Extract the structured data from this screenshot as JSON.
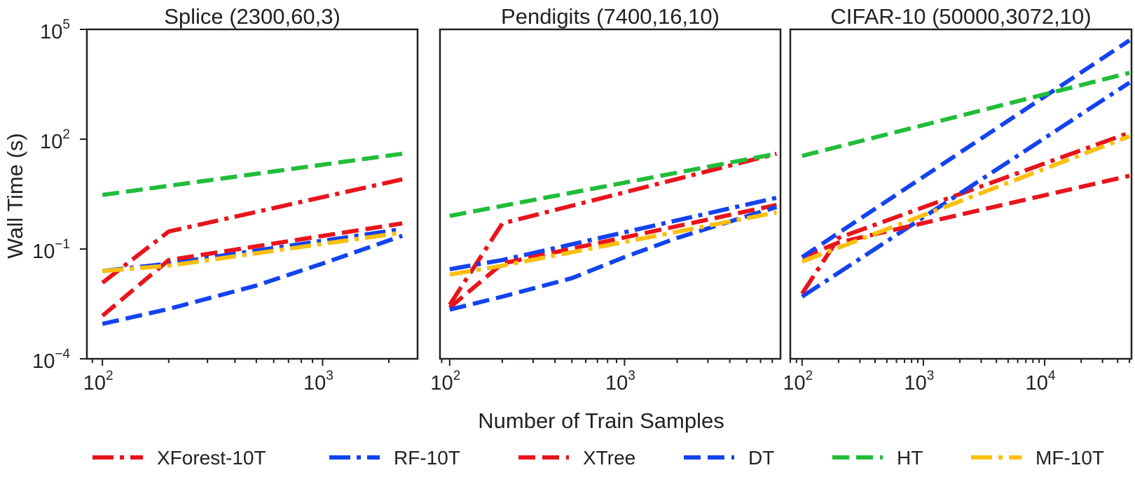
{
  "figure": {
    "ylabel": "Wall Time (s)",
    "xlabel": "Number of Train Samples"
  },
  "legend": [
    {
      "name": "XForest-10T",
      "color": "#e8141c",
      "dash": "dashdot"
    },
    {
      "name": "RF-10T",
      "color": "#1343ee",
      "dash": "dashdot"
    },
    {
      "name": "XTree",
      "color": "#e8141c",
      "dash": "dashed"
    },
    {
      "name": "DT",
      "color": "#1343ee",
      "dash": "dashed"
    },
    {
      "name": "HT",
      "color": "#21bd3a",
      "dash": "dashed"
    },
    {
      "name": "MF-10T",
      "color": "#fbbf0f",
      "dash": "dashdot"
    }
  ],
  "chart_data": [
    {
      "type": "line",
      "title": "Splice (2300,60,3)",
      "xscale": "log",
      "yscale": "log",
      "xlim": [
        85,
        2700
      ],
      "ylim": [
        0.0001,
        100000
      ],
      "xticks": [
        {
          "base": "10",
          "exp": "2",
          "value": 100
        },
        {
          "base": "10",
          "exp": "3",
          "value": 1000
        }
      ],
      "yticks": [
        {
          "base": "10",
          "exp": "−4",
          "value": 0.0001
        },
        {
          "base": "10",
          "exp": "−1",
          "value": 0.1
        },
        {
          "base": "10",
          "exp": "2",
          "value": 100
        },
        {
          "base": "10",
          "exp": "5",
          "value": 100000
        }
      ],
      "series": [
        {
          "name": "XForest-10T",
          "x": [
            100,
            200,
            2300
          ],
          "y": [
            0.012,
            0.3,
            8
          ]
        },
        {
          "name": "RF-10T",
          "x": [
            100,
            200,
            2300
          ],
          "y": [
            0.025,
            0.04,
            0.35
          ]
        },
        {
          "name": "XTree",
          "x": [
            100,
            200,
            2300
          ],
          "y": [
            0.0015,
            0.05,
            0.5
          ]
        },
        {
          "name": "DT",
          "x": [
            100,
            200,
            500,
            1000,
            2300
          ],
          "y": [
            0.0009,
            0.0023,
            0.01,
            0.04,
            0.23
          ]
        },
        {
          "name": "HT",
          "x": [
            100,
            2300
          ],
          "y": [
            3,
            40
          ]
        },
        {
          "name": "MF-10T",
          "x": [
            100,
            200,
            2300
          ],
          "y": [
            0.025,
            0.035,
            0.28
          ]
        }
      ]
    },
    {
      "type": "line",
      "title": "Pendigits (7400,16,10)",
      "xscale": "log",
      "yscale": "log",
      "xlim": [
        88,
        7800
      ],
      "ylim": [
        0.0001,
        100000
      ],
      "xticks": [
        {
          "base": "10",
          "exp": "2",
          "value": 100
        },
        {
          "base": "10",
          "exp": "3",
          "value": 1000
        }
      ],
      "yticks": [],
      "series": [
        {
          "name": "XForest-10T",
          "x": [
            100,
            200,
            7400
          ],
          "y": [
            0.003,
            0.5,
            40
          ]
        },
        {
          "name": "RF-10T",
          "x": [
            100,
            200,
            7400
          ],
          "y": [
            0.028,
            0.05,
            2.5
          ]
        },
        {
          "name": "XTree",
          "x": [
            100,
            200,
            7400
          ],
          "y": [
            0.0025,
            0.04,
            1.6
          ]
        },
        {
          "name": "DT",
          "x": [
            100,
            200,
            500,
            1000,
            2000,
            7400
          ],
          "y": [
            0.0022,
            0.005,
            0.016,
            0.06,
            0.2,
            1.4
          ]
        },
        {
          "name": "HT",
          "x": [
            100,
            7400
          ],
          "y": [
            0.8,
            40
          ]
        },
        {
          "name": "MF-10T",
          "x": [
            100,
            200,
            7400
          ],
          "y": [
            0.02,
            0.035,
            1.0
          ]
        }
      ]
    },
    {
      "type": "line",
      "title": "CIFAR-10 (50000,3072,10)",
      "xscale": "log",
      "yscale": "log",
      "xlim": [
        80,
        52000
      ],
      "ylim": [
        0.0001,
        100000
      ],
      "xticks": [
        {
          "base": "10",
          "exp": "2",
          "value": 100
        },
        {
          "base": "10",
          "exp": "3",
          "value": 1000
        },
        {
          "base": "10",
          "exp": "4",
          "value": 10000
        }
      ],
      "yticks": [],
      "series": [
        {
          "name": "XForest-10T",
          "x": [
            100,
            200,
            50000
          ],
          "y": [
            0.006,
            0.2,
            150
          ]
        },
        {
          "name": "RF-10T",
          "x": [
            100,
            50000
          ],
          "y": [
            0.005,
            3500
          ]
        },
        {
          "name": "XTree",
          "x": [
            100,
            200,
            50000
          ],
          "y": [
            0.06,
            0.15,
            10
          ]
        },
        {
          "name": "DT",
          "x": [
            100,
            50000
          ],
          "y": [
            0.06,
            50000
          ]
        },
        {
          "name": "HT",
          "x": [
            100,
            50000
          ],
          "y": [
            35,
            6500
          ]
        },
        {
          "name": "MF-10T",
          "x": [
            100,
            50000
          ],
          "y": [
            0.045,
            120
          ]
        }
      ]
    }
  ]
}
